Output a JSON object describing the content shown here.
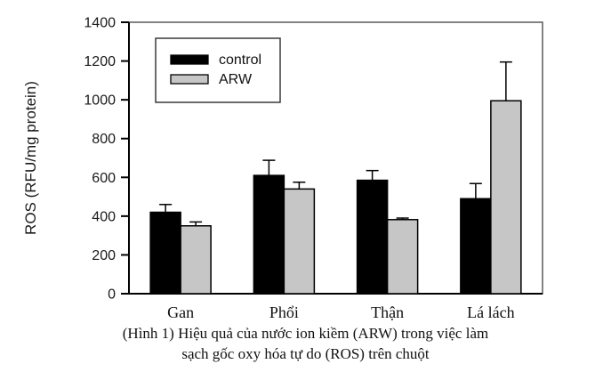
{
  "chart_data": {
    "type": "bar",
    "title": "",
    "ylabel": "ROS (RFU/mg protein)",
    "xlabel": "",
    "ylim": [
      0,
      1400
    ],
    "yticks": [
      0,
      200,
      400,
      600,
      800,
      1000,
      1200,
      1400
    ],
    "grid": false,
    "legend_position": "upper-left-inside",
    "categories": [
      "Gan",
      "Phổi",
      "Thận",
      "Lá lách"
    ],
    "series": [
      {
        "name": "control",
        "color": "#000000",
        "values": [
          420,
          610,
          585,
          490
        ],
        "errors_plus": [
          40,
          78,
          50,
          78
        ]
      },
      {
        "name": "ARW",
        "color": "#c6c6c6",
        "values": [
          350,
          540,
          382,
          995
        ],
        "errors_plus": [
          20,
          35,
          8,
          200
        ]
      }
    ]
  },
  "caption": {
    "line1": "(Hình 1) Hiệu quả của nước ion kiềm (ARW) trong việc làm",
    "line2": "sạch gốc oxy hóa tự do (ROS) trên chuột"
  }
}
